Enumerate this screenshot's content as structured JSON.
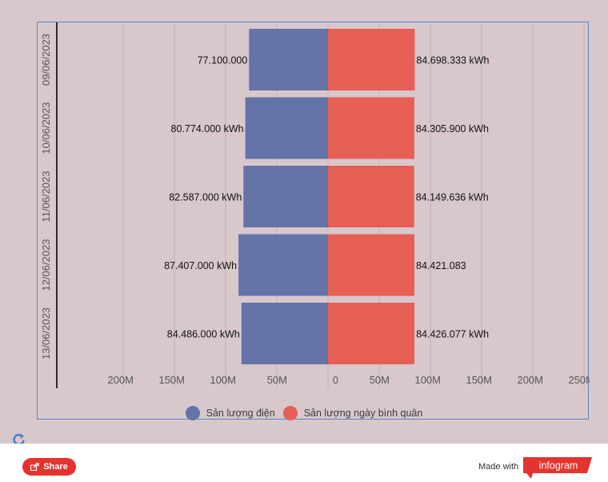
{
  "chart_data": {
    "type": "bar",
    "orientation": "horizontal",
    "layout": "diverging",
    "categories": [
      "09/06/2023",
      "10/06/2023",
      "11/06/2023",
      "12/06/2023",
      "13/06/2023"
    ],
    "series": [
      {
        "name": "Sản lượng điện",
        "color": "#6473a8",
        "values": [
          77100000,
          80774000,
          82587000,
          87407000,
          84486000
        ],
        "labels": [
          "77.100.000",
          "80.774.000 kWh",
          "82.587.000 kWh",
          "87.407.000 kWh",
          "84.486.000 kWh"
        ]
      },
      {
        "name": "Sản lượng ngày bình quân",
        "color": "#e65f55",
        "values": [
          84698333,
          84305900,
          84149636,
          84421083,
          84426077
        ],
        "labels": [
          "84.698.333 kWh",
          "84.305.900 kWh",
          "84.149.636 kWh",
          "84.421.083",
          "84.426.077 kWh"
        ]
      }
    ],
    "x_range": [
      -250000000,
      250000000
    ],
    "x_ticks": [
      {
        "value": -200000000,
        "label": "200M"
      },
      {
        "value": -150000000,
        "label": "150M"
      },
      {
        "value": -100000000,
        "label": "100M"
      },
      {
        "value": -50000000,
        "label": "50M"
      },
      {
        "value": 0,
        "label": "0"
      },
      {
        "value": 50000000,
        "label": "50M"
      },
      {
        "value": 100000000,
        "label": "100M"
      },
      {
        "value": 150000000,
        "label": "150M"
      },
      {
        "value": 200000000,
        "label": "200M"
      },
      {
        "value": 250000000,
        "label": "250M"
      }
    ],
    "grid": true,
    "legend": "bottom-center"
  },
  "footer": {
    "share_label": "Share",
    "made_with": "Made with",
    "brand": "infogram"
  },
  "colors": {
    "share": "#e3342f",
    "brand": "#e3342f"
  }
}
